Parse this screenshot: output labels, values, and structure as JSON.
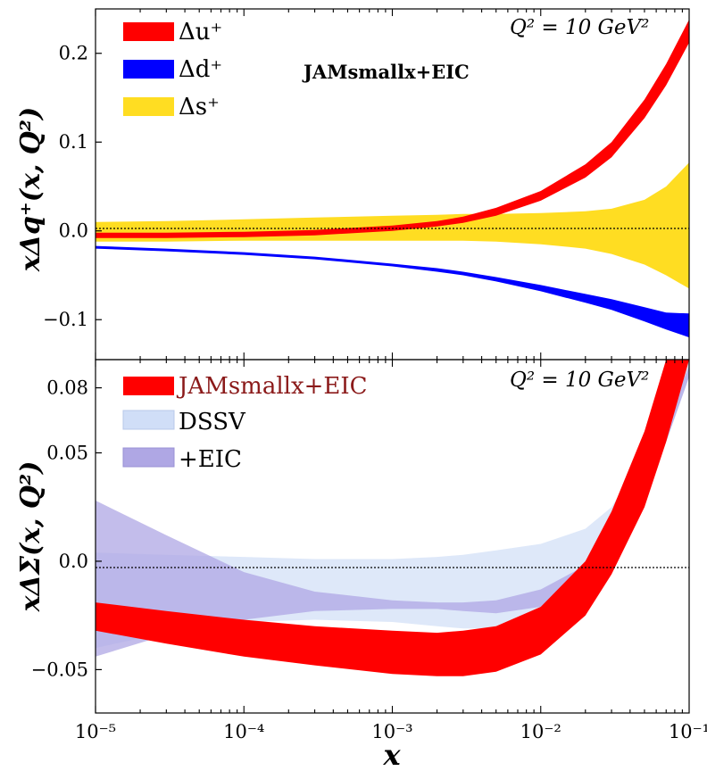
{
  "chart_data": [
    {
      "type": "area",
      "panel": "top",
      "ylabel": "xΔq⁺(x, Q²)",
      "x_scale": "log",
      "xlim": [
        1e-05,
        0.1
      ],
      "ylim": [
        -0.145,
        0.25
      ],
      "yticks": [
        0.2,
        0.1,
        0.0,
        -0.1
      ],
      "ytick_labels": [
        "0.2",
        "0.1",
        "0.0",
        "−0.1"
      ],
      "reference_line": 0,
      "legend_position": "top-left",
      "annotation": "Q² = 10 GeV²",
      "inner_title": "JAMsmallx+EIC",
      "x": [
        1e-05,
        3e-05,
        0.0001,
        0.0003,
        0.001,
        0.002,
        0.003,
        0.005,
        0.01,
        0.02,
        0.03,
        0.05,
        0.07,
        0.1
      ],
      "series": [
        {
          "name": "Δs⁺",
          "color": "#FFDD22",
          "upper": [
            0.01,
            0.011,
            0.013,
            0.015,
            0.017,
            0.018,
            0.019,
            0.019,
            0.02,
            0.022,
            0.025,
            0.035,
            0.05,
            0.077
          ],
          "lower": [
            -0.012,
            -0.012,
            -0.011,
            -0.011,
            -0.011,
            -0.011,
            -0.011,
            -0.012,
            -0.015,
            -0.02,
            -0.026,
            -0.038,
            -0.05,
            -0.065
          ]
        },
        {
          "name": "Δu⁺",
          "color": "#FF0000",
          "upper": [
            -0.002,
            -0.002,
            -0.001,
            0.001,
            0.006,
            0.011,
            0.016,
            0.026,
            0.045,
            0.075,
            0.1,
            0.148,
            0.188,
            0.238
          ],
          "lower": [
            -0.008,
            -0.008,
            -0.007,
            -0.005,
            0.0,
            0.005,
            0.009,
            0.017,
            0.034,
            0.06,
            0.083,
            0.127,
            0.164,
            0.212
          ]
        },
        {
          "name": "Δd⁺",
          "color": "#0000FF",
          "upper": [
            -0.017,
            -0.02,
            -0.024,
            -0.029,
            -0.037,
            -0.042,
            -0.046,
            -0.052,
            -0.061,
            -0.071,
            -0.077,
            -0.086,
            -0.092,
            -0.093
          ],
          "lower": [
            -0.02,
            -0.023,
            -0.027,
            -0.032,
            -0.04,
            -0.046,
            -0.05,
            -0.057,
            -0.068,
            -0.081,
            -0.089,
            -0.102,
            -0.111,
            -0.12
          ]
        }
      ]
    },
    {
      "type": "area",
      "panel": "bottom",
      "xlabel": "x",
      "ylabel": "xΔΣ(x, Q²)",
      "x_scale": "log",
      "xlim": [
        1e-05,
        0.1
      ],
      "ylim": [
        -0.07,
        0.093
      ],
      "xticks": [
        1e-05,
        0.0001,
        0.001,
        0.01,
        0.1
      ],
      "xtick_labels": [
        "10⁻⁵",
        "10⁻⁴",
        "10⁻³",
        "10⁻²",
        "10⁻¹"
      ],
      "yticks": [
        0.08,
        0.05,
        0.0,
        -0.05
      ],
      "ytick_labels": [
        "0.08",
        "0.05",
        "0.0",
        "−0.05"
      ],
      "reference_line": 0,
      "legend_position": "top-left",
      "annotation": "Q² = 10 GeV²",
      "x": [
        1e-05,
        3e-05,
        0.0001,
        0.0003,
        0.001,
        0.002,
        0.003,
        0.005,
        0.01,
        0.02,
        0.03,
        0.05,
        0.07,
        0.1
      ],
      "series": [
        {
          "name": "DSSV",
          "color": "#D0DEF7",
          "upper": [
            0.004,
            0.003,
            0.002,
            0.001,
            0.001,
            0.002,
            0.003,
            0.005,
            0.008,
            0.015,
            0.025,
            0.05,
            0.075,
            0.093
          ],
          "lower": [
            -0.04,
            -0.033,
            -0.028,
            -0.027,
            -0.028,
            -0.03,
            -0.031,
            -0.031,
            -0.027,
            -0.01,
            0.005,
            0.03,
            0.055,
            0.085
          ]
        },
        {
          "name": "+EIC",
          "color": "#AFA7E4",
          "upper": [
            0.028,
            0.012,
            -0.005,
            -0.014,
            -0.018,
            -0.019,
            -0.019,
            -0.018,
            -0.013,
            -0.002,
            0.01,
            0.04,
            0.065,
            0.09
          ]
        },
        {
          "name": "JAMsmallx+EIC",
          "color": "#FF0000",
          "upper": [
            -0.019,
            -0.023,
            -0.027,
            -0.03,
            -0.032,
            -0.033,
            -0.032,
            -0.03,
            -0.021,
            0.0,
            0.023,
            0.06,
            0.093,
            0.093
          ],
          "lower": [
            -0.032,
            -0.038,
            -0.044,
            -0.048,
            -0.052,
            -0.053,
            -0.053,
            -0.051,
            -0.043,
            -0.025,
            -0.006,
            0.025,
            0.055,
            0.093
          ]
        }
      ]
    }
  ],
  "eic_lower": [
    -0.044,
    -0.034,
    -0.027,
    -0.023,
    -0.022,
    -0.022,
    -0.023,
    -0.024,
    -0.021,
    -0.009,
    0.003,
    0.03,
    0.055,
    0.085
  ],
  "legend_top": [
    "Δu⁺",
    "Δd⁺",
    "Δs⁺"
  ],
  "legend_bottom": [
    "JAMsmallx+EIC",
    "DSSV",
    "+EIC"
  ],
  "colors": {
    "red": "#FF0000",
    "blue": "#0000FF",
    "yellow": "#FFDD22",
    "dssv": "#D0DEF7",
    "eic": "#AFA7E4",
    "jam_text": "#8B1A1A"
  }
}
